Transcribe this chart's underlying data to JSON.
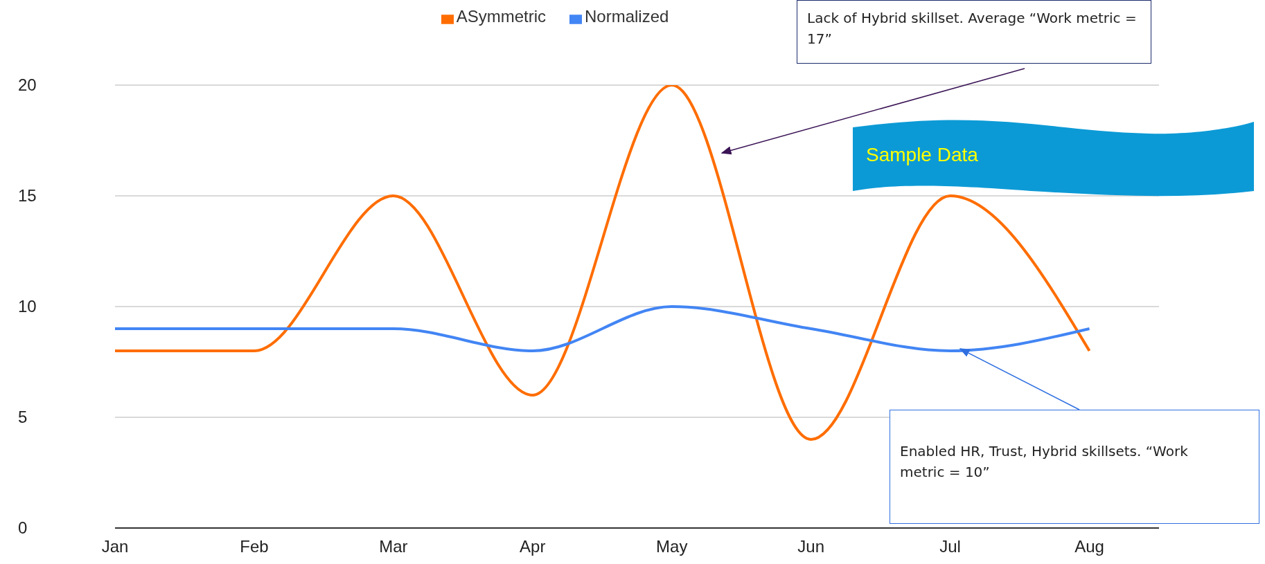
{
  "chart_data": {
    "type": "line",
    "categories": [
      "Jan",
      "Feb",
      "Mar",
      "Apr",
      "May",
      "Jun",
      "Jul",
      "Aug"
    ],
    "series": [
      {
        "name": "ASymmetric",
        "color": "#ff6d01",
        "values": [
          8,
          8,
          15,
          6,
          20,
          4,
          15,
          8
        ]
      },
      {
        "name": "Normalized",
        "color": "#4285f4",
        "values": [
          9,
          9,
          9,
          8,
          10,
          9,
          8,
          9
        ]
      }
    ],
    "ylim": [
      0,
      20
    ],
    "yticks": [
      0,
      5,
      10,
      15,
      20
    ],
    "grid": "y",
    "legend": "top",
    "marker": "none",
    "line_style": "solid",
    "annotations": [
      "Lack of Hybrid skillset. Average “Work metric = 17”",
      "Sample Data",
      "Enabled HR, Trust, Hybrid skillsets. “Work metric = 10”"
    ]
  }
}
